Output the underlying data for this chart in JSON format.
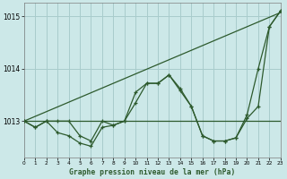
{
  "x": [
    0,
    1,
    2,
    3,
    4,
    5,
    6,
    7,
    8,
    9,
    10,
    11,
    12,
    13,
    14,
    15,
    16,
    17,
    18,
    19,
    20,
    21,
    22,
    23
  ],
  "line_jagged": [
    1013.0,
    1012.88,
    1013.0,
    1012.78,
    1012.72,
    1012.58,
    1012.52,
    1012.88,
    1012.92,
    1013.0,
    1013.55,
    1013.72,
    1013.72,
    1013.88,
    1013.58,
    1013.28,
    1012.72,
    1012.62,
    1012.62,
    1012.68,
    1013.05,
    1013.28,
    1014.8,
    1015.1
  ],
  "line_smooth": [
    1013.0,
    1012.88,
    1013.0,
    1013.0,
    1013.0,
    1012.72,
    1012.62,
    1013.0,
    1012.92,
    1013.0,
    1013.35,
    1013.72,
    1013.72,
    1013.88,
    1013.62,
    1013.28,
    1012.72,
    1012.62,
    1012.62,
    1012.68,
    1013.12,
    1014.0,
    1014.8,
    1015.1
  ],
  "line_trend": [
    1013.0,
    1013.0,
    1013.0,
    1013.0,
    1013.0,
    1013.0,
    1013.0,
    1013.0,
    1013.0,
    1013.0,
    1013.0,
    1013.0,
    1013.0,
    1013.0,
    1013.0,
    1013.0,
    1013.0,
    1013.0,
    1013.0,
    1013.0,
    1013.0,
    1013.0,
    1013.0,
    1013.0
  ],
  "line_diagonal": [
    1013.0,
    1013.09,
    1013.18,
    1013.27,
    1013.36,
    1013.45,
    1013.54,
    1013.63,
    1013.72,
    1013.81,
    1013.9,
    1013.99,
    1014.08,
    1014.17,
    1014.26,
    1014.35,
    1014.44,
    1014.53,
    1014.62,
    1014.71,
    1014.8,
    1014.89,
    1014.98,
    1015.07
  ],
  "background_color": "#cce8e8",
  "grid_color": "#a8cccc",
  "line_color": "#2d5a2d",
  "xlabel": "Graphe pression niveau de la mer (hPa)",
  "xlim": [
    0,
    23
  ],
  "ylim": [
    1012.3,
    1015.25
  ],
  "yticks": [
    1013,
    1014,
    1015
  ],
  "xticks": [
    0,
    1,
    2,
    3,
    4,
    5,
    6,
    7,
    8,
    9,
    10,
    11,
    12,
    13,
    14,
    15,
    16,
    17,
    18,
    19,
    20,
    21,
    22,
    23
  ]
}
